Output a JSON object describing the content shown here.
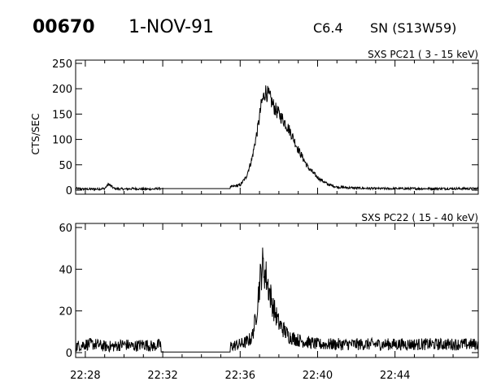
{
  "header": {
    "event_id": "00670",
    "date": "1-NOV-91",
    "goes_class": "C6.4",
    "location": "SN (S13W59)"
  },
  "chart_data": [
    {
      "type": "line",
      "title": "SXS PC21  (  3 - 15 keV)",
      "ylabel": "CTS/SEC",
      "ylim": [
        0,
        255
      ],
      "yticks": [
        0,
        50,
        100,
        150,
        200,
        250
      ],
      "xlim": [
        "22:27.5",
        "22:48.3"
      ],
      "xticks": [
        "22:28",
        "22:32",
        "22:36",
        "22:40",
        "22:44"
      ],
      "series": [
        {
          "x_minutes": [
            27.5,
            28.0,
            28.5,
            29.0,
            29.2,
            29.5,
            30.0,
            30.5,
            31.0,
            31.5,
            32.0,
            33.0,
            34.0,
            35.0,
            35.5,
            36.0,
            36.3,
            36.6,
            36.9,
            37.1,
            37.3,
            37.5,
            37.8,
            38.2,
            38.6,
            39.0,
            39.5,
            40.0,
            40.5,
            41.0,
            42.0,
            43.0,
            44.0,
            45.0,
            46.0,
            47.0,
            48.3
          ],
          "y": [
            3,
            2,
            2,
            3,
            12,
            3,
            2,
            3,
            2,
            2,
            4,
            4,
            3,
            3,
            6,
            10,
            25,
            60,
            120,
            170,
            195,
            185,
            160,
            140,
            115,
            80,
            45,
            25,
            12,
            6,
            4,
            3,
            3,
            3,
            3,
            3,
            3
          ]
        }
      ]
    },
    {
      "type": "line",
      "title": "SXS PC22  ( 15 - 40 keV)",
      "ylabel": "",
      "ylim": [
        0,
        60
      ],
      "yticks": [
        0,
        20,
        40,
        60
      ],
      "xlim": [
        "22:27.5",
        "22:48.3"
      ],
      "xticks": [
        "22:28",
        "22:32",
        "22:36",
        "22:40",
        "22:44"
      ],
      "series": [
        {
          "x_minutes": [
            27.5,
            28.0,
            28.5,
            29.0,
            29.5,
            30.0,
            30.5,
            31.0,
            31.5,
            31.9,
            35.5,
            36.0,
            36.3,
            36.6,
            36.8,
            37.0,
            37.15,
            37.3,
            37.5,
            37.7,
            38.0,
            38.5,
            39.0,
            39.5,
            40.0,
            41.0,
            42.0,
            43.0,
            44.0,
            45.0,
            46.0,
            47.0,
            48.3
          ],
          "y": [
            3,
            4,
            4,
            3,
            3,
            4,
            3,
            4,
            3,
            4,
            3,
            4,
            5,
            7,
            16,
            33,
            42,
            38,
            30,
            22,
            14,
            8,
            6,
            5,
            4,
            4,
            4,
            4,
            4,
            4,
            4,
            4,
            4
          ]
        }
      ]
    }
  ]
}
